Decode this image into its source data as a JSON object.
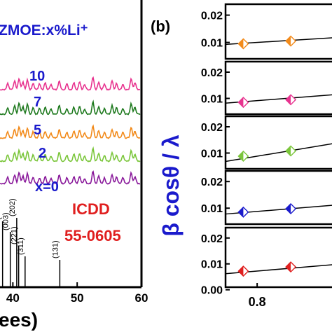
{
  "colors": {
    "axis": "#000000",
    "label_blue": "#1a1acc",
    "icdd_red": "#e01f1f",
    "fit_line": "#000000",
    "x0": "#8a1a9b",
    "x2": "#7bc63b",
    "x5": "#f28a1a",
    "x7": "#1f7a1f",
    "x10": "#e8338f"
  },
  "chart_data": [
    {
      "type": "line",
      "panel": "a",
      "title": "ZMOE:x%Li⁺",
      "xlabel": "ees)",
      "x_ticks": [
        "40",
        "50",
        "60"
      ],
      "xlim": [
        38,
        60
      ],
      "series": [
        {
          "name": "x=0",
          "color_key": "x0",
          "offset": 0
        },
        {
          "name": "2",
          "color_key": "x2",
          "offset": 1
        },
        {
          "name": "5",
          "color_key": "x5",
          "offset": 2
        },
        {
          "name": "7",
          "color_key": "x7",
          "offset": 3
        },
        {
          "name": "10",
          "color_key": "x10",
          "offset": 4
        }
      ],
      "peaks_2theta": [
        39.2,
        40.3,
        41.0,
        41.6,
        42.3,
        43.2,
        44.2,
        45.1,
        46.0,
        47.3,
        48.5,
        49.6,
        50.5,
        51.3,
        52.6,
        53.5,
        54.4,
        55.6,
        56.3,
        57.3,
        58.6,
        59.2
      ],
      "peak_heights": [
        0.5,
        0.7,
        0.9,
        0.6,
        0.8,
        0.5,
        0.45,
        0.55,
        0.4,
        0.7,
        0.45,
        0.55,
        0.6,
        0.4,
        1.0,
        0.6,
        0.45,
        0.7,
        0.5,
        0.45,
        0.85,
        0.55
      ],
      "reference": {
        "label_line1": "ICDD",
        "label_line2": "55-0605",
        "sticks": [
          {
            "two_theta": 38.4,
            "label": "(",
            "height": 0.9
          },
          {
            "two_theta": 39.6,
            "label": "(003)",
            "height": 0.75
          },
          {
            "two_theta": 40.6,
            "label": "(202)",
            "height": 0.95
          },
          {
            "two_theta": 40.9,
            "label": "(221)",
            "height": 0.55
          },
          {
            "two_theta": 41.9,
            "label": "(311)",
            "height": 0.4
          },
          {
            "two_theta": 47.3,
            "label": "(131)",
            "height": 0.35
          }
        ]
      }
    },
    {
      "type": "scatter",
      "panel": "b",
      "title": "(b)",
      "ylabel": "β cosθ / λ",
      "x_ticks": [
        "0.8"
      ],
      "y_ticks_upper": [
        "0.02",
        "0.01"
      ],
      "y_ticks_bottom": [
        "0.02",
        "0.01",
        "0.00"
      ],
      "xlim": [
        0.72,
        1.0
      ],
      "ylim": [
        0.0,
        0.025
      ],
      "subplots": [
        {
          "color_key": "x5",
          "points": [
            {
              "x": 0.765,
              "y": 0.0095
            },
            {
              "x": 0.885,
              "y": 0.0105
            }
          ],
          "fit": {
            "x0": 0.72,
            "y0": 0.0093,
            "x1": 1.0,
            "y1": 0.0118
          }
        },
        {
          "color_key": "x10",
          "points": [
            {
              "x": 0.765,
              "y": 0.0085
            },
            {
              "x": 0.885,
              "y": 0.0095
            }
          ],
          "fit": {
            "x0": 0.72,
            "y0": 0.0082,
            "x1": 1.0,
            "y1": 0.0115
          }
        },
        {
          "color_key": "x2",
          "points": [
            {
              "x": 0.765,
              "y": 0.0088
            },
            {
              "x": 0.885,
              "y": 0.0108
            }
          ],
          "fit": {
            "x0": 0.72,
            "y0": 0.0068,
            "x1": 1.0,
            "y1": 0.0138
          }
        },
        {
          "color_key": "label_blue",
          "points": [
            {
              "x": 0.765,
              "y": 0.0085
            },
            {
              "x": 0.885,
              "y": 0.0098
            }
          ],
          "fit": {
            "x0": 0.72,
            "y0": 0.0078,
            "x1": 1.0,
            "y1": 0.0112
          }
        },
        {
          "color_key": "icdd_red",
          "points": [
            {
              "x": 0.765,
              "y": 0.0072
            },
            {
              "x": 0.885,
              "y": 0.0088
            }
          ],
          "fit": {
            "x0": 0.72,
            "y0": 0.0062,
            "x1": 1.0,
            "y1": 0.0098
          }
        }
      ]
    }
  ]
}
